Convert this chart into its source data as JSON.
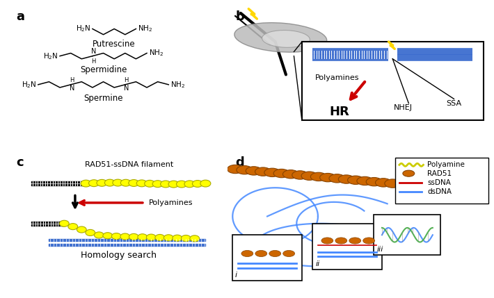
{
  "panel_a_label": "a",
  "panel_b_label": "b",
  "panel_c_label": "c",
  "panel_d_label": "d",
  "putrescine_label": "Putrescine",
  "spermidine_label": "Spermidine",
  "spermine_label": "Spermine",
  "polyamines_label": "Polyamines",
  "hr_label": "HR",
  "nhej_label": "NHEJ",
  "ssa_label": "SSA",
  "rad51_filament_label": "RAD51-ssDNA filament",
  "homology_label": "Homology search",
  "polyamines_arrow_label": "Polyamines",
  "legend_polyamine": "Polyamine",
  "legend_rad51": "RAD51",
  "legend_ssdna": "ssDNA",
  "legend_dsdna": "dsDNA",
  "bg_color": "#ffffff",
  "text_color": "#000000",
  "blue_dna_color": "#3366cc",
  "red_arrow_color": "#cc0000",
  "yellow_bead_color": "#FFFF00",
  "yellow_bead_edge": "#AAAA00",
  "rad51_color": "#cc6600",
  "rad51_edge": "#884400",
  "ssdna_color": "#cc0000",
  "dsdna_color": "#4488ff",
  "dsdna_color2": "#2255cc",
  "lightning_color": "#FFD700",
  "black_dna_color": "#111111",
  "gray_cell_color": "#bbbbbb",
  "gray_cell_edge": "#888888"
}
